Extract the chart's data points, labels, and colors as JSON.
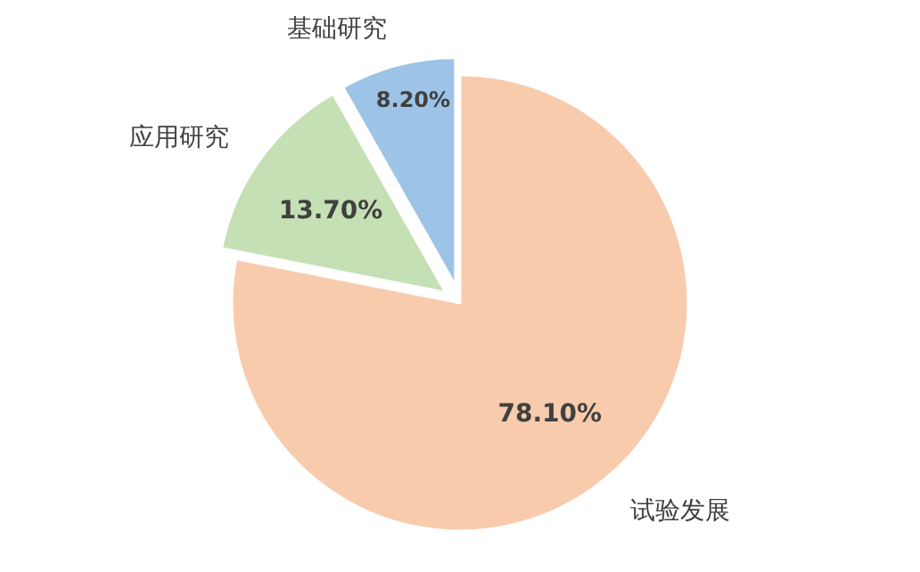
{
  "chart_data": {
    "type": "pie",
    "categories": [
      "试验发展",
      "应用研究",
      "基础研究"
    ],
    "values": [
      78.1,
      13.7,
      8.2
    ],
    "colors": [
      "#f8cbad",
      "#c5e0b4",
      "#9dc3e6"
    ],
    "value_labels": [
      "78.10%",
      "13.70%",
      "8.20%"
    ]
  }
}
